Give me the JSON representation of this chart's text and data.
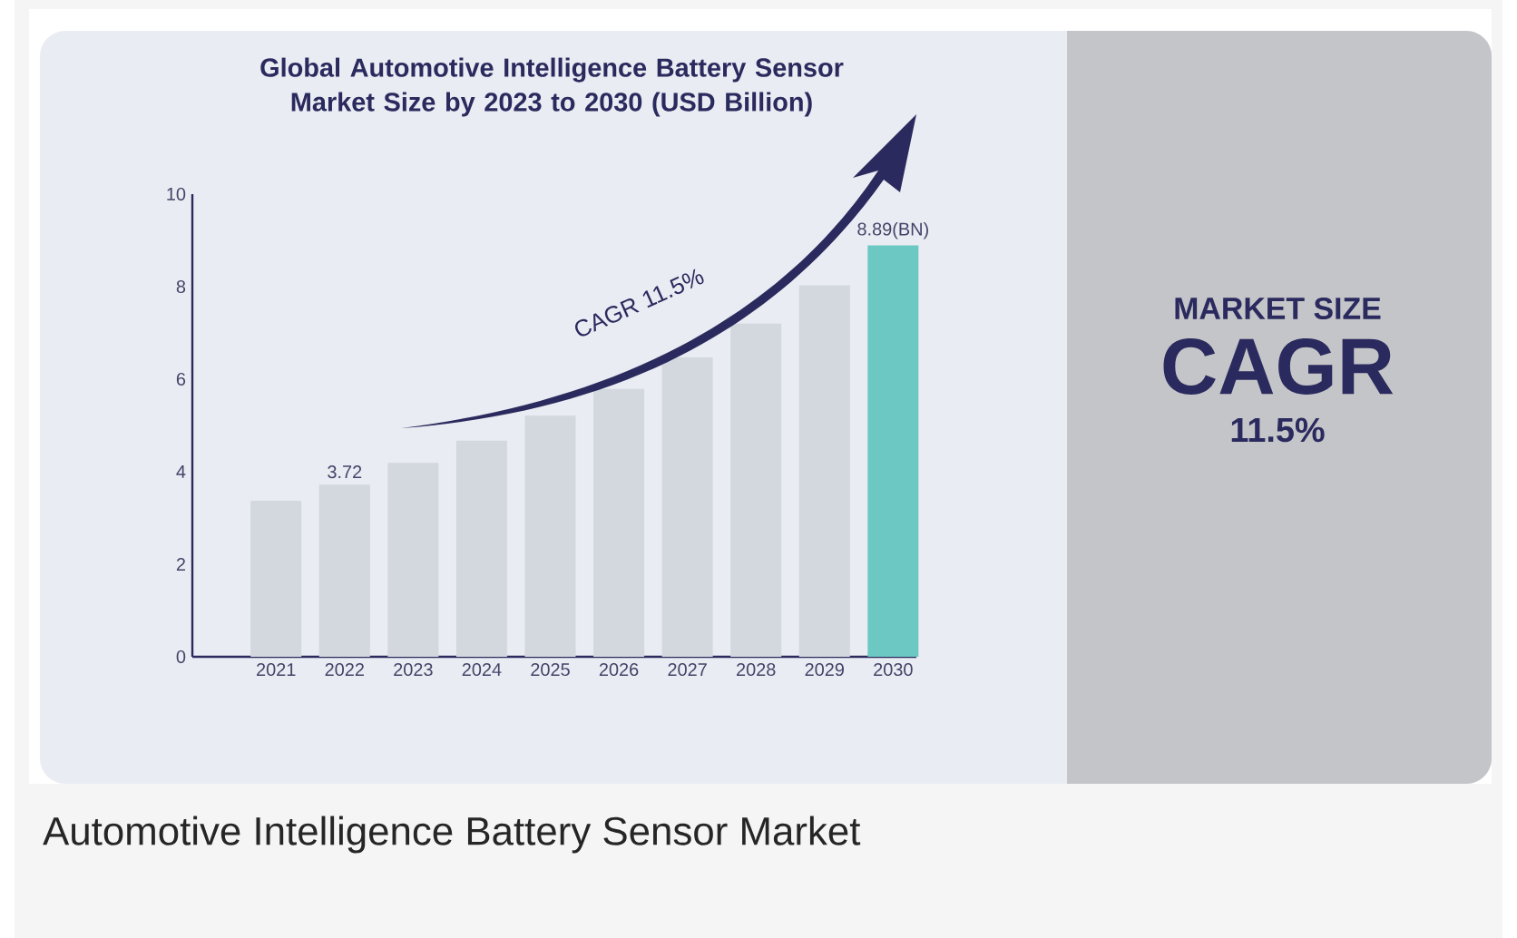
{
  "chart_data": {
    "type": "bar",
    "title": "Global Automotive Intelligence Battery Sensor Market Size by 2023 to 2030 (USD Billion)",
    "categories": [
      "2021",
      "2022",
      "2023",
      "2024",
      "2025",
      "2026",
      "2027",
      "2028",
      "2029",
      "2030"
    ],
    "values": [
      3.37,
      3.72,
      4.19,
      4.67,
      5.21,
      5.79,
      6.47,
      7.2,
      8.03,
      8.89
    ],
    "colors": [
      "#d2d8de",
      "#d2d8de",
      "#d2d8de",
      "#d2d8de",
      "#d2d8de",
      "#d2d8de",
      "#d2d8de",
      "#d2d8de",
      "#d2d8de",
      "#6cc8c2"
    ],
    "value_labels": [
      null,
      "3.72",
      null,
      null,
      null,
      null,
      null,
      null,
      null,
      "8.89(BN)"
    ],
    "ylim": [
      0,
      10
    ],
    "yticks": [
      0,
      2,
      4,
      6,
      8,
      10
    ],
    "annotations": [
      "CAGR 11.5%",
      "MARKET SIZE",
      "CAGR",
      "11.5%",
      "Automotive Intelligence Battery Sensor Market"
    ]
  }
}
